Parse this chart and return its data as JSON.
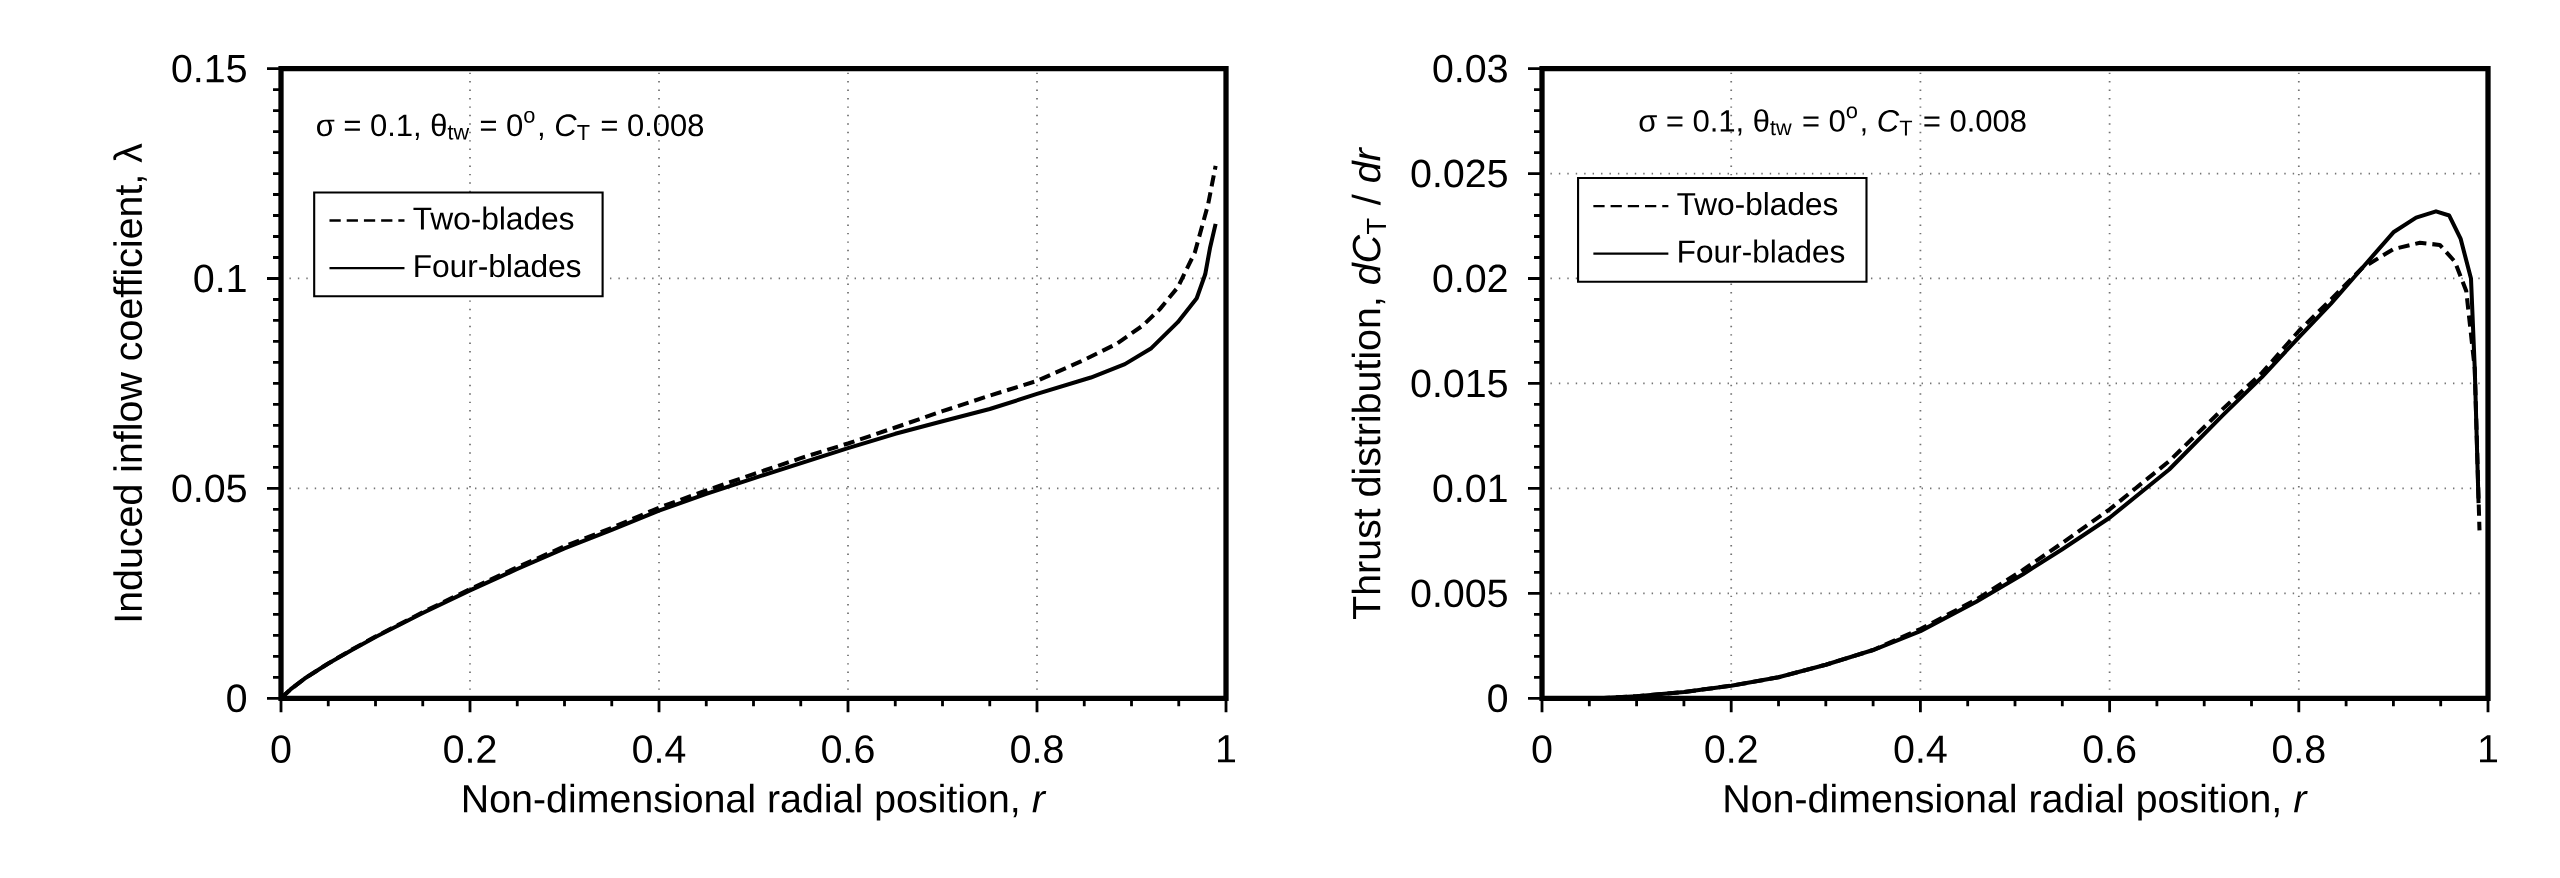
{
  "chart_data": [
    {
      "type": "line",
      "xlabel": "Non-dimensional radial position, *r*",
      "ylabel": "Induced inflow coefficient, λ",
      "annotations": [
        "σ = 0.1,  θ$_{tw}$ = 0$^{o}$, *C*$_{T}$ = 0.008"
      ],
      "xlim": [
        0,
        1
      ],
      "ylim": [
        0,
        0.15
      ],
      "xticks": [
        0,
        0.2,
        0.4,
        0.6,
        0.8,
        1
      ],
      "yticks": [
        0,
        0.05,
        0.1,
        0.15
      ],
      "grid": true,
      "legend": "top left",
      "series": [
        {
          "name": "Two-blades",
          "color": "#000000",
          "line_style": "dashed",
          "x": [
            0,
            0.01,
            0.025,
            0.05,
            0.075,
            0.1,
            0.15,
            0.2,
            0.25,
            0.3,
            0.35,
            0.4,
            0.45,
            0.5,
            0.55,
            0.6,
            0.65,
            0.7,
            0.75,
            0.8,
            0.847,
            0.884,
            0.912,
            0.93,
            0.949,
            0.967,
            0.981,
            0.989
          ],
          "values": [
            0,
            0.0021,
            0.0047,
            0.0083,
            0.0116,
            0.0147,
            0.0205,
            0.026,
            0.0312,
            0.0362,
            0.0406,
            0.0454,
            0.0495,
            0.0534,
            0.0572,
            0.0607,
            0.0645,
            0.0684,
            0.0721,
            0.0756,
            0.0803,
            0.0844,
            0.0888,
            0.0927,
            0.0979,
            0.1062,
            0.1176,
            0.1268
          ]
        },
        {
          "name": "Four-blades",
          "color": "#000000",
          "line_style": "solid",
          "x": [
            0,
            0.01,
            0.025,
            0.05,
            0.075,
            0.1,
            0.15,
            0.2,
            0.25,
            0.3,
            0.35,
            0.4,
            0.45,
            0.5,
            0.55,
            0.6,
            0.65,
            0.7,
            0.75,
            0.8,
            0.857,
            0.893,
            0.921,
            0.949,
            0.969,
            0.978,
            0.983,
            0.989
          ],
          "values": [
            0,
            0.0021,
            0.0047,
            0.0083,
            0.0115,
            0.0146,
            0.0203,
            0.0257,
            0.0308,
            0.0357,
            0.0401,
            0.0447,
            0.0487,
            0.0524,
            0.056,
            0.0596,
            0.063,
            0.066,
            0.0689,
            0.0725,
            0.0764,
            0.0796,
            0.0834,
            0.0896,
            0.0953,
            0.101,
            0.1072,
            0.113
          ]
        }
      ]
    },
    {
      "type": "line",
      "xlabel": "Non-dimensional radial position, *r*",
      "ylabel": "Thrust distribution, *dC*$_{T}$ / *dr*",
      "annotations": [
        "σ = 0.1,  θ$_{tw}$ = 0$^{o}$, *C*$_{T}$ = 0.008"
      ],
      "xlim": [
        0,
        1
      ],
      "ylim": [
        0,
        0.03
      ],
      "xticks": [
        0,
        0.2,
        0.4,
        0.6,
        0.8,
        1
      ],
      "yticks": [
        0,
        0.005,
        0.01,
        0.015,
        0.02,
        0.025,
        0.03
      ],
      "grid": true,
      "legend": "top left",
      "series": [
        {
          "name": "Two-blades",
          "color": "#000000",
          "line_style": "dashed",
          "x": [
            0.06,
            0.1,
            0.15,
            0.2,
            0.25,
            0.3,
            0.35,
            0.4,
            0.459,
            0.508,
            0.55,
            0.6,
            0.663,
            0.72,
            0.761,
            0.8,
            0.834,
            0.867,
            0.9,
            0.928,
            0.949,
            0.965,
            0.977,
            0.986,
            0.991
          ],
          "values": [
            0,
            0.0001,
            0.0003,
            0.0006,
            0.001,
            0.0016,
            0.0023,
            0.0033,
            0.0047,
            0.0061,
            0.0074,
            0.009,
            0.0113,
            0.0138,
            0.0155,
            0.0175,
            0.019,
            0.0205,
            0.0214,
            0.0217,
            0.0216,
            0.0208,
            0.0194,
            0.0157,
            0.008
          ]
        },
        {
          "name": "Four-blades",
          "color": "#000000",
          "line_style": "solid",
          "x": [
            0.06,
            0.1,
            0.15,
            0.2,
            0.25,
            0.3,
            0.35,
            0.4,
            0.459,
            0.508,
            0.55,
            0.6,
            0.663,
            0.72,
            0.761,
            0.8,
            0.834,
            0.867,
            0.9,
            0.924,
            0.945,
            0.959,
            0.971,
            0.982,
            0.986,
            0.99
          ],
          "values": [
            0,
            0.0001,
            0.0003,
            0.0006,
            0.001,
            0.0016,
            0.0023,
            0.0032,
            0.0046,
            0.0059,
            0.0071,
            0.0086,
            0.0109,
            0.0135,
            0.0153,
            0.0172,
            0.0188,
            0.0205,
            0.0222,
            0.0229,
            0.0232,
            0.023,
            0.0219,
            0.02,
            0.0157,
            0.0093
          ]
        }
      ]
    }
  ]
}
